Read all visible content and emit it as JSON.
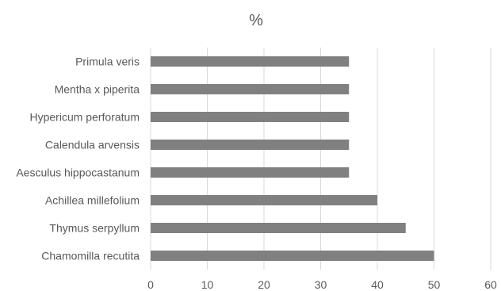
{
  "chart_data": {
    "type": "bar",
    "orientation": "horizontal",
    "title": "%",
    "categories": [
      "Primula veris",
      "Mentha x piperita",
      "Hypericum perforatum",
      "Calendula arvensis",
      "Aesculus hippocastanum",
      "Achillea millefolium",
      "Thymus serpyllum",
      "Chamomilla recutita"
    ],
    "values": [
      35,
      35,
      35,
      35,
      35,
      40,
      45,
      50
    ],
    "xticks": [
      "0",
      "10",
      "20",
      "30",
      "40",
      "50",
      "60"
    ],
    "xlim": [
      0,
      60
    ],
    "grid": "vertical",
    "legend": "none",
    "colors": {
      "bar": "#808080",
      "grid": "#d9d9d9",
      "text": "#595959"
    }
  }
}
